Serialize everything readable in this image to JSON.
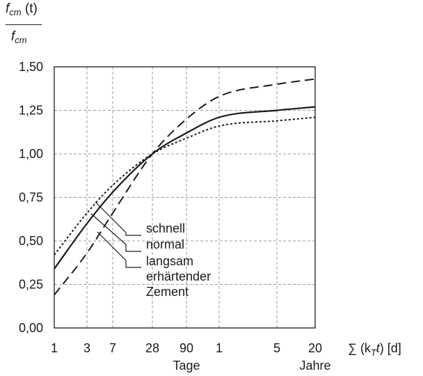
{
  "chart_data": {
    "type": "line",
    "ylabel": {
      "numerator": {
        "f": "f",
        "sub": "cm",
        "tail": " (t)"
      },
      "denominator": {
        "f": "f",
        "sub": "cm"
      }
    },
    "xlabel": {
      "prefix": "∑ (k",
      "sub": "T",
      "mid": "t",
      "suffix": ") [d]"
    },
    "y_ticks": [
      "0,00",
      "0,25",
      "0,50",
      "0,75",
      "1,00",
      "1,25",
      "1,50"
    ],
    "ylim": [
      0,
      1.5
    ],
    "x_ticks": [
      "1",
      "3",
      "7",
      "28",
      "90",
      "1",
      "5",
      "20"
    ],
    "x_tick_days": [
      1,
      3,
      7,
      28,
      90,
      365,
      1825,
      7300
    ],
    "x_unit_labels": [
      {
        "text": "Tage",
        "under_tick": 4
      },
      {
        "text": "Jahre",
        "under_tick": 7
      }
    ],
    "x_scale": "log",
    "grid": true,
    "series": [
      {
        "key": "schnell",
        "style": "dotted",
        "x": [
          1,
          3,
          7,
          28,
          90,
          365,
          1825,
          7300
        ],
        "values": [
          0.42,
          0.66,
          0.82,
          1.0,
          1.09,
          1.16,
          1.19,
          1.21
        ]
      },
      {
        "key": "normal",
        "style": "solid",
        "x": [
          1,
          3,
          7,
          28,
          90,
          365,
          1825,
          7300
        ],
        "values": [
          0.34,
          0.6,
          0.78,
          1.0,
          1.12,
          1.21,
          1.25,
          1.27
        ]
      },
      {
        "key": "langsam",
        "style": "dashed",
        "x": [
          1,
          3,
          7,
          28,
          90,
          365,
          1825,
          7300
        ],
        "values": [
          0.19,
          0.43,
          0.66,
          1.0,
          1.2,
          1.33,
          1.4,
          1.43
        ]
      }
    ],
    "annotations": [
      "schnell",
      "normal",
      "langsam",
      "erhärtender",
      "Zement"
    ]
  }
}
